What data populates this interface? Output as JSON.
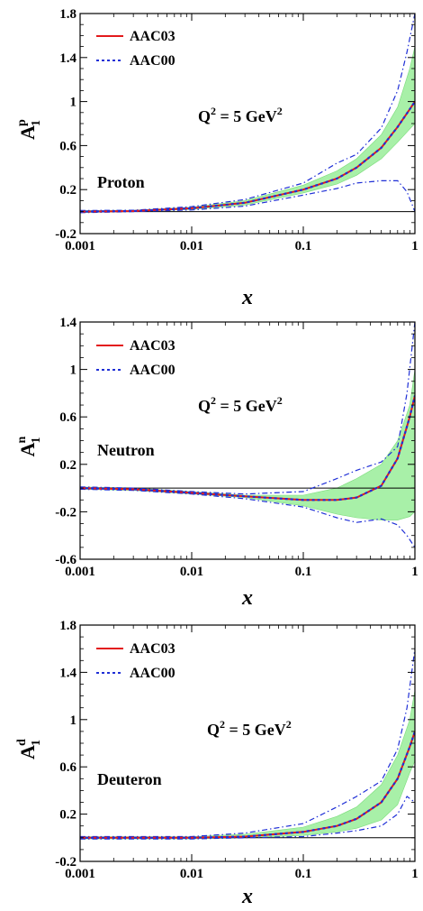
{
  "chart_data": [
    {
      "type": "line",
      "ylabel": "A",
      "ylabel_sub": "1",
      "ylabel_sup": "p",
      "xlabel": "x",
      "x_scale": "log",
      "xlim": [
        0.001,
        1
      ],
      "ylim": [
        -0.2,
        1.8
      ],
      "xticks": [
        "0.001",
        "0.01",
        "0.1",
        "1"
      ],
      "yticks": [
        "-0.2",
        "0.2",
        "0.6",
        "1",
        "1.4",
        "1.8"
      ],
      "annotation": "Proton",
      "q2_text": "Q",
      "q2_sup": "2",
      "q2_rest": " = 5 GeV",
      "q2_sup2": "2",
      "band_color": "#a8f0a8",
      "series": [
        {
          "name": "AAC03",
          "color": "#e31a1c",
          "style": "solid",
          "x": [
            0.001,
            0.003,
            0.01,
            0.03,
            0.1,
            0.2,
            0.3,
            0.5,
            0.7,
            0.9,
            1.0
          ],
          "y": [
            0.0,
            0.005,
            0.03,
            0.08,
            0.2,
            0.3,
            0.4,
            0.58,
            0.77,
            0.93,
            1.0
          ]
        },
        {
          "name": "AAC00",
          "color": "#1f2fd6",
          "style": "dotted",
          "x": [
            0.001,
            0.003,
            0.01,
            0.03,
            0.1,
            0.2,
            0.3,
            0.5,
            0.7,
            0.9,
            1.0
          ],
          "y": [
            0.0,
            0.005,
            0.03,
            0.08,
            0.2,
            0.3,
            0.4,
            0.58,
            0.77,
            0.93,
            1.0
          ]
        }
      ],
      "band": {
        "x": [
          0.001,
          0.003,
          0.01,
          0.03,
          0.1,
          0.2,
          0.3,
          0.5,
          0.7,
          0.9,
          1.0
        ],
        "lower": [
          -0.01,
          0.0,
          0.02,
          0.06,
          0.17,
          0.25,
          0.33,
          0.48,
          0.63,
          0.75,
          0.8
        ],
        "upper": [
          0.01,
          0.012,
          0.04,
          0.1,
          0.24,
          0.37,
          0.48,
          0.7,
          0.95,
          1.3,
          1.5
        ]
      },
      "aac00_band": {
        "x": [
          0.001,
          0.003,
          0.01,
          0.03,
          0.1,
          0.2,
          0.3,
          0.5,
          0.7,
          0.85,
          1.0
        ],
        "lower": [
          -0.01,
          0.0,
          0.015,
          0.05,
          0.15,
          0.21,
          0.26,
          0.28,
          0.28,
          0.18,
          0.0
        ],
        "upper": [
          0.01,
          0.012,
          0.045,
          0.11,
          0.26,
          0.44,
          0.52,
          0.76,
          1.1,
          1.45,
          1.8
        ]
      }
    },
    {
      "type": "line",
      "ylabel": "A",
      "ylabel_sub": "1",
      "ylabel_sup": "n",
      "xlabel": "x",
      "x_scale": "log",
      "xlim": [
        0.001,
        1
      ],
      "ylim": [
        -0.6,
        1.4
      ],
      "xticks": [
        "0.001",
        "0.01",
        "0.1",
        "1"
      ],
      "yticks": [
        "-0.6",
        "-0.2",
        "0.2",
        "0.6",
        "1",
        "1.4"
      ],
      "annotation": "Neutron",
      "q2_text": "Q",
      "q2_sup": "2",
      "q2_rest": " = 5 GeV",
      "q2_sup2": "2",
      "band_color": "#a8f0a8",
      "series": [
        {
          "name": "AAC03",
          "color": "#e31a1c",
          "style": "solid",
          "x": [
            0.001,
            0.003,
            0.01,
            0.03,
            0.1,
            0.2,
            0.3,
            0.5,
            0.7,
            0.9,
            1.0
          ],
          "y": [
            0.0,
            -0.01,
            -0.04,
            -0.07,
            -0.1,
            -0.1,
            -0.08,
            0.02,
            0.25,
            0.6,
            0.78
          ]
        },
        {
          "name": "AAC00",
          "color": "#1f2fd6",
          "style": "dotted",
          "x": [
            0.001,
            0.003,
            0.01,
            0.03,
            0.1,
            0.2,
            0.3,
            0.5,
            0.7,
            0.9,
            1.0
          ],
          "y": [
            0.0,
            -0.01,
            -0.04,
            -0.07,
            -0.1,
            -0.1,
            -0.08,
            0.02,
            0.25,
            0.6,
            0.78
          ]
        }
      ],
      "band": {
        "x": [
          0.001,
          0.003,
          0.01,
          0.03,
          0.1,
          0.2,
          0.3,
          0.5,
          0.7,
          0.9,
          1.0
        ],
        "lower": [
          -0.01,
          -0.02,
          -0.05,
          -0.08,
          -0.15,
          -0.22,
          -0.25,
          -0.27,
          -0.27,
          -0.24,
          -0.2
        ],
        "upper": [
          0.01,
          0.0,
          -0.03,
          -0.06,
          -0.06,
          0.0,
          0.08,
          0.2,
          0.4,
          0.7,
          1.0
        ]
      },
      "aac00_band": {
        "x": [
          0.001,
          0.003,
          0.01,
          0.03,
          0.1,
          0.2,
          0.3,
          0.5,
          0.7,
          0.85,
          1.0
        ],
        "lower": [
          -0.01,
          -0.02,
          -0.05,
          -0.09,
          -0.16,
          -0.25,
          -0.29,
          -0.26,
          -0.31,
          -0.4,
          -0.5
        ],
        "upper": [
          0.01,
          0.0,
          -0.03,
          -0.05,
          -0.03,
          0.08,
          0.15,
          0.22,
          0.35,
          0.8,
          1.4
        ]
      }
    },
    {
      "type": "line",
      "ylabel": "A",
      "ylabel_sub": "1",
      "ylabel_sup": "d",
      "xlabel": "x",
      "x_scale": "log",
      "xlim": [
        0.001,
        1
      ],
      "ylim": [
        -0.2,
        1.8
      ],
      "xticks": [
        "0.001",
        "0.01",
        "0.1",
        "1"
      ],
      "yticks": [
        "-0.2",
        "0.2",
        "0.6",
        "1",
        "1.4",
        "1.8"
      ],
      "annotation": "Deuteron",
      "q2_text": "Q",
      "q2_sup": "2",
      "q2_rest": " = 5 GeV",
      "q2_sup2": "2",
      "band_color": "#a8f0a8",
      "series": [
        {
          "name": "AAC03",
          "color": "#e31a1c",
          "style": "solid",
          "x": [
            0.001,
            0.003,
            0.01,
            0.03,
            0.1,
            0.2,
            0.3,
            0.5,
            0.7,
            0.9,
            1.0
          ],
          "y": [
            0.0,
            0.0,
            0.0,
            0.01,
            0.05,
            0.1,
            0.16,
            0.3,
            0.5,
            0.77,
            0.9
          ]
        },
        {
          "name": "AAC00",
          "color": "#1f2fd6",
          "style": "dotted",
          "x": [
            0.001,
            0.003,
            0.01,
            0.03,
            0.1,
            0.2,
            0.3,
            0.5,
            0.7,
            0.9,
            1.0
          ],
          "y": [
            0.0,
            0.0,
            0.0,
            0.01,
            0.05,
            0.1,
            0.16,
            0.3,
            0.5,
            0.77,
            0.9
          ]
        }
      ],
      "band": {
        "x": [
          0.001,
          0.003,
          0.01,
          0.03,
          0.1,
          0.2,
          0.3,
          0.5,
          0.7,
          0.9,
          1.0
        ],
        "lower": [
          -0.01,
          -0.01,
          -0.01,
          0.0,
          0.02,
          0.05,
          0.08,
          0.15,
          0.28,
          0.55,
          0.65
        ],
        "upper": [
          0.01,
          0.01,
          0.01,
          0.03,
          0.09,
          0.18,
          0.26,
          0.45,
          0.7,
          1.0,
          1.25
        ]
      },
      "aac00_band": {
        "x": [
          0.001,
          0.003,
          0.01,
          0.03,
          0.1,
          0.2,
          0.3,
          0.5,
          0.7,
          0.85,
          1.0
        ],
        "lower": [
          -0.01,
          -0.01,
          -0.01,
          0.0,
          0.01,
          0.04,
          0.06,
          0.1,
          0.2,
          0.35,
          0.3
        ],
        "upper": [
          0.01,
          0.01,
          0.01,
          0.04,
          0.12,
          0.26,
          0.35,
          0.48,
          0.75,
          1.1,
          1.6
        ]
      }
    }
  ]
}
